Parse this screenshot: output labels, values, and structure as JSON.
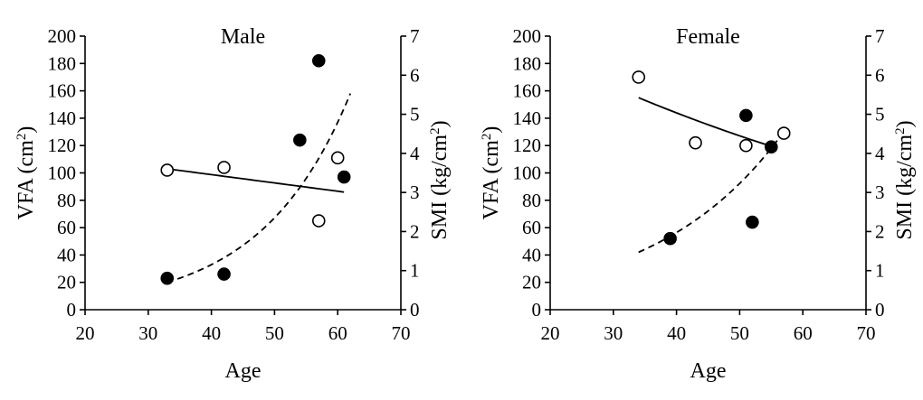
{
  "chart_data": [
    {
      "type": "scatter",
      "title": "Male",
      "xlabel": "Age",
      "ylabel_left": "VFA (cm²)",
      "ylabel_right": "SMI (kg/cm²)",
      "xlim": [
        20,
        70
      ],
      "ylim_left": [
        0,
        200
      ],
      "ylim_right": [
        0,
        7
      ],
      "x_ticks": [
        20,
        30,
        40,
        50,
        60,
        70
      ],
      "y_left_ticks": [
        0,
        20,
        40,
        60,
        80,
        100,
        120,
        140,
        160,
        180,
        200
      ],
      "y_right_ticks": [
        0,
        1,
        2,
        3,
        4,
        5,
        6,
        7
      ],
      "grid": false,
      "series": [
        {
          "marker": "open-circle",
          "axis": "left",
          "points": [
            [
              33,
              102
            ],
            [
              42,
              104
            ],
            [
              57,
              65
            ],
            [
              60,
              111
            ]
          ]
        },
        {
          "marker": "filled-circle",
          "axis": "left",
          "points": [
            [
              33,
              23
            ],
            [
              42,
              26
            ],
            [
              54,
              124
            ],
            [
              57,
              182
            ],
            [
              61,
              97
            ]
          ]
        }
      ],
      "trend_lines": [
        {
          "style": "solid",
          "kind": "linear",
          "x_range": [
            33,
            61
          ],
          "y_range": [
            103,
            86
          ]
        },
        {
          "style": "dashed",
          "kind": "exponential",
          "x_range": [
            33,
            62
          ],
          "y_range": [
            20,
            158
          ]
        }
      ]
    },
    {
      "type": "scatter",
      "title": "Female",
      "xlabel": "Age",
      "ylabel_left": "VFA (cm²)",
      "ylabel_right": "SMI (kg/cm²)",
      "xlim": [
        20,
        70
      ],
      "ylim_left": [
        0,
        200
      ],
      "ylim_right": [
        0,
        7
      ],
      "x_ticks": [
        20,
        30,
        40,
        50,
        60,
        70
      ],
      "y_left_ticks": [
        0,
        20,
        40,
        60,
        80,
        100,
        120,
        140,
        160,
        180,
        200
      ],
      "y_right_ticks": [
        0,
        1,
        2,
        3,
        4,
        5,
        6,
        7
      ],
      "grid": false,
      "series": [
        {
          "marker": "open-circle",
          "axis": "left",
          "points": [
            [
              34,
              170
            ],
            [
              43,
              122
            ],
            [
              51,
              120
            ],
            [
              57,
              129
            ]
          ]
        },
        {
          "marker": "filled-circle",
          "axis": "left",
          "points": [
            [
              39,
              52
            ],
            [
              51,
              142
            ],
            [
              52,
              64
            ],
            [
              55,
              119
            ]
          ]
        }
      ],
      "trend_lines": [
        {
          "style": "solid",
          "kind": "exponential",
          "x_range": [
            34,
            56
          ],
          "y_range": [
            155,
            118
          ]
        },
        {
          "style": "dashed",
          "kind": "exponential",
          "x_range": [
            34,
            56
          ],
          "y_range": [
            42,
            124
          ]
        }
      ]
    }
  ]
}
